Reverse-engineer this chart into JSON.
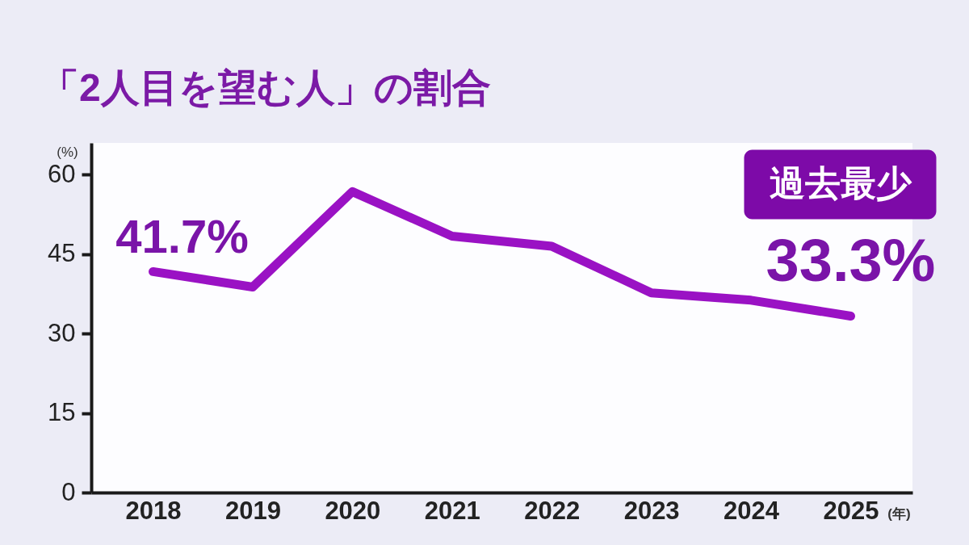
{
  "chart_data": {
    "type": "line",
    "title": "「2人目を望む人」の割合",
    "xlabel": "(年)",
    "ylabel": "(%)",
    "categories": [
      "2018",
      "2019",
      "2020",
      "2021",
      "2022",
      "2023",
      "2024",
      "2025"
    ],
    "values": [
      41.7,
      38.8,
      56.8,
      48.4,
      46.5,
      37.7,
      36.3,
      33.3
    ],
    "value_labels": [
      "41.7%",
      null,
      null,
      null,
      null,
      null,
      null,
      "33.3%"
    ],
    "color": "#9a12c4",
    "line_style": "solid",
    "ylim": [
      0,
      66
    ],
    "yticks": [
      0,
      15,
      30,
      45,
      60
    ],
    "annotations": [
      "過去最少"
    ]
  }
}
